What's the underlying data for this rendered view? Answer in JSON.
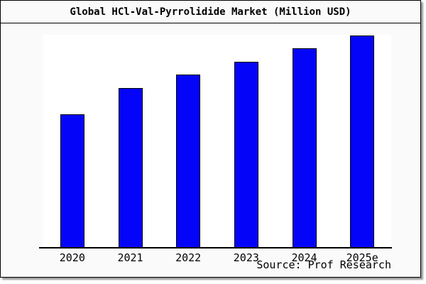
{
  "header": {
    "title": "Global HCl-Val-Pyrrolidide Market (Million USD)"
  },
  "footer": {
    "source": "Source: Prof Research"
  },
  "colors": {
    "bar_fill": "#0404f8",
    "bar_border": "#000000",
    "card_background": "#fafafa",
    "plot_background": "#ffffff",
    "axis": "#000000"
  },
  "chart_data": {
    "type": "bar",
    "title": "Global HCl-Val-Pyrrolidide Market (Million USD)",
    "categories": [
      "2020",
      "2021",
      "2022",
      "2023",
      "2024",
      "2025e"
    ],
    "values": [
      62.8,
      75.2,
      81.5,
      87.6,
      94.0,
      100.0
    ],
    "value_note": "No y-axis ticks or data labels are shown in the image; values are bar heights normalized to 2025e = 100.",
    "unit": "Million USD",
    "xlabel": "",
    "ylabel": "",
    "ylim": [
      0,
      100.7
    ],
    "grid": false,
    "legend": false,
    "bar_color": "#0404f8",
    "bar_border_color": "#000000",
    "plot_bg": "#ffffff",
    "source_label": "Source: Prof Research"
  }
}
